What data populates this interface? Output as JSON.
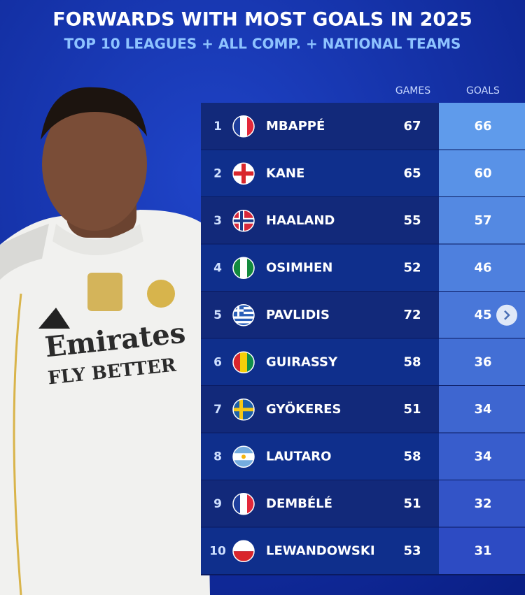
{
  "header": {
    "title": "FORWARDS WITH MOST GOALS IN 2025",
    "subtitle": "TOP 10 LEAGUES + ALL COMP. + NATIONAL TEAMS"
  },
  "photo": {
    "shirt_text": [
      "Emirates",
      "FLY BETTER"
    ]
  },
  "table": {
    "columns": [
      "GAMES",
      "GOALS"
    ],
    "rows": [
      [
        1,
        "MBAPPÉ",
        67,
        66
      ],
      [
        2,
        "KANE",
        65,
        60
      ],
      [
        3,
        "HAALAND",
        55,
        57
      ],
      [
        4,
        "OSIMHEN",
        52,
        46
      ],
      [
        5,
        "PAVLIDIS",
        72,
        45
      ],
      [
        6,
        "GUIRASSY",
        58,
        36
      ],
      [
        7,
        "GYÖKERES",
        51,
        34
      ],
      [
        8,
        "LAUTARO",
        58,
        34
      ],
      [
        9,
        "DEMBÉLÉ",
        51,
        32
      ],
      [
        10,
        "LEWANDOWSKI",
        53,
        31
      ]
    ]
  }
}
